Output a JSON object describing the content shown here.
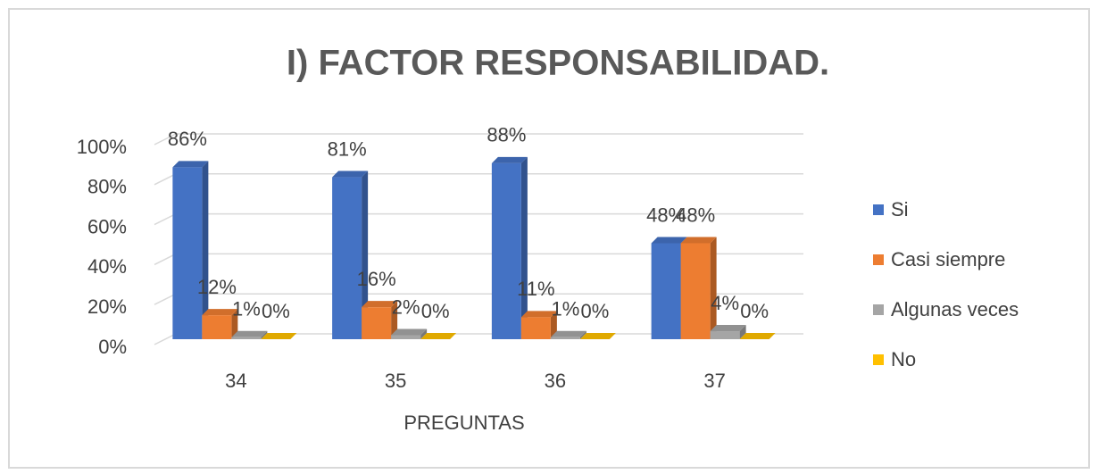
{
  "chart_data": {
    "type": "bar3d",
    "title": "I) FACTOR RESPONSABILIDAD.",
    "x_label": "PREGUNTAS",
    "categories": [
      "34",
      "35",
      "36",
      "37"
    ],
    "series": [
      {
        "name": "Si",
        "color": "#4472c4",
        "values": [
          86,
          81,
          88,
          48
        ],
        "value_labels": [
          "86%",
          "81%",
          "88%",
          "48%"
        ]
      },
      {
        "name": "Casi siempre",
        "color": "#ed7d31",
        "values": [
          12,
          16,
          11,
          48
        ],
        "value_labels": [
          "12%",
          "16%",
          "11%",
          "48%"
        ]
      },
      {
        "name": "Algunas veces",
        "color": "#a5a5a5",
        "values": [
          1,
          2,
          1,
          4
        ],
        "value_labels": [
          "1%",
          "2%",
          "1%",
          "4%"
        ]
      },
      {
        "name": "No",
        "color": "#ffc000",
        "values": [
          0,
          0,
          0,
          0
        ],
        "value_labels": [
          "0%",
          "0%",
          "0%",
          "0%"
        ]
      }
    ],
    "ylim": [
      0,
      100
    ],
    "yticks": [
      {
        "value": 0,
        "label": "0%"
      },
      {
        "value": 20,
        "label": "20%"
      },
      {
        "value": 40,
        "label": "40%"
      },
      {
        "value": 60,
        "label": "60%"
      },
      {
        "value": 80,
        "label": "80%"
      },
      {
        "value": 100,
        "label": "100%"
      }
    ],
    "grid": true,
    "legend": "right"
  }
}
